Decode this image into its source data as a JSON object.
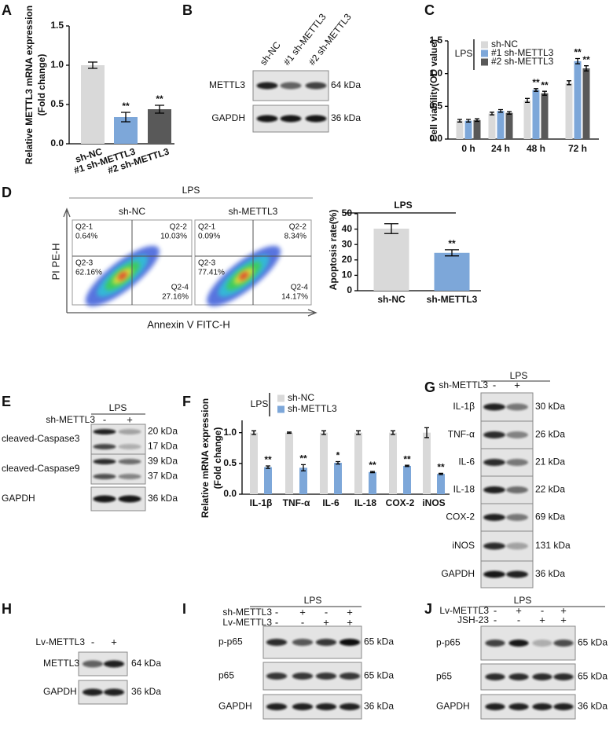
{
  "panel_labels": [
    "A",
    "B",
    "C",
    "D",
    "E",
    "F",
    "G",
    "H",
    "I",
    "J"
  ],
  "chart_data": [
    {
      "type": "bar",
      "y_label": [
        "Relative METTL3 mRNA expression",
        "(Fold change)"
      ],
      "categories": [
        "sh-NC",
        "#1 sh-METTL3",
        "#2 sh-METTL3"
      ],
      "values": [
        1.0,
        0.34,
        0.44
      ],
      "errors": [
        0.04,
        0.06,
        0.05
      ],
      "annotations": [
        null,
        "**",
        "**"
      ],
      "colors": [
        "#d9d9d9",
        "#7da7d9",
        "#595959"
      ],
      "ylim": [
        0,
        1.5
      ],
      "yticks": [
        {
          "value": 0,
          "label": "0.0"
        },
        0.5,
        {
          "value": 1,
          "label": "1.0"
        },
        1.5
      ]
    },
    {
      "type": "bar",
      "y_label": [
        "Cell viability(OD value)"
      ],
      "legend_title": "LPS",
      "categories": [
        "0 h",
        "24 h",
        "48 h",
        "72 h"
      ],
      "series": [
        {
          "name": "sh-NC",
          "color": "#d9d9d9",
          "values": [
            0.28,
            0.39,
            0.59,
            0.86
          ],
          "errors": [
            0.02,
            0.02,
            0.03,
            0.03
          ],
          "annotations": [
            null,
            null,
            null,
            null
          ]
        },
        {
          "name": "#1 sh-METTL3",
          "color": "#7da7d9",
          "values": [
            0.28,
            0.43,
            0.75,
            1.19
          ],
          "errors": [
            0.02,
            0.02,
            0.02,
            0.04
          ],
          "annotations": [
            null,
            null,
            "**",
            "**"
          ]
        },
        {
          "name": "#2 sh-METTL3",
          "color": "#595959",
          "values": [
            0.29,
            0.4,
            0.7,
            1.08
          ],
          "errors": [
            0.02,
            0.02,
            0.03,
            0.04
          ],
          "annotations": [
            null,
            null,
            "**",
            "**"
          ]
        }
      ],
      "ylim": [
        0,
        1.5
      ],
      "yticks": [
        {
          "value": 0,
          "label": "0.0"
        },
        0.5,
        {
          "value": 1,
          "label": "1.0"
        },
        1.5
      ]
    },
    {
      "type": "bar",
      "title": "LPS",
      "y_label": [
        "Apoptosis rate(%)"
      ],
      "categories": [
        "sh-NC",
        "sh-METTL3"
      ],
      "values": [
        40.3,
        24.6
      ],
      "errors": [
        3.2,
        2.0
      ],
      "annotations": [
        null,
        "**"
      ],
      "colors": [
        "#d9d9d9",
        "#7da7d9"
      ],
      "ylim": [
        0,
        50
      ],
      "yticks": [
        0,
        10,
        20,
        30,
        40,
        50
      ]
    },
    {
      "type": "bar",
      "y_label": [
        "Relative mRNA expression",
        "(Fold change)"
      ],
      "legend_title": "LPS",
      "categories": [
        "IL-1β",
        "TNF-α",
        "IL-6",
        "IL-18",
        "COX-2",
        "iNOS"
      ],
      "series": [
        {
          "name": "sh-NC",
          "color": "#d9d9d9",
          "values": [
            1,
            1,
            1,
            1,
            1,
            1
          ],
          "errors": [
            0.03,
            0.01,
            0.03,
            0.03,
            0.03,
            0.08
          ],
          "annotations": [
            null,
            null,
            null,
            null,
            null,
            null
          ]
        },
        {
          "name": "sh-METTL3",
          "color": "#7da7d9",
          "values": [
            0.44,
            0.43,
            0.51,
            0.36,
            0.46,
            0.33
          ],
          "errors": [
            0.02,
            0.05,
            0.02,
            0.01,
            0.01,
            0.01
          ],
          "annotations": [
            "**",
            "**",
            "*",
            "**",
            "**",
            "**"
          ]
        }
      ],
      "ylim": [
        0,
        1.2
      ],
      "yticks": [
        {
          "value": 0,
          "label": "0.0"
        },
        0.5,
        {
          "value": 1,
          "label": "1.0"
        }
      ]
    }
  ],
  "flow": {
    "title": "LPS",
    "x_label": "Annexin V FITC-H",
    "y_label": "PI PE-H",
    "plots": [
      {
        "name": "sh-NC",
        "quadrants": [
          {
            "name": "Q2-1",
            "value": "0.64%"
          },
          {
            "name": "Q2-2",
            "value": "10.03%"
          },
          {
            "name": "Q2-3",
            "value": "62.16%"
          },
          {
            "name": "Q2-4",
            "value": "27.16%"
          }
        ]
      },
      {
        "name": "sh-METTL3",
        "quadrants": [
          {
            "name": "Q2-1",
            "value": "0.09%"
          },
          {
            "name": "Q2-2",
            "value": "8.34%"
          },
          {
            "name": "Q2-3",
            "value": "77.41%"
          },
          {
            "name": "Q2-4",
            "value": "14.17%"
          }
        ]
      }
    ]
  },
  "blots": [
    {
      "lanes": [
        "sh-NC",
        "#1 sh-METTL3",
        "#2 sh-METTL3"
      ],
      "rows": [
        {
          "name": "METTL3",
          "kda": [
            "64 kDa"
          ]
        },
        {
          "name": "GAPDH",
          "kda": [
            "36 kDa"
          ]
        }
      ]
    },
    {
      "header": "LPS",
      "conditions": [
        {
          "name": "sh-METTL3",
          "signs": [
            "-",
            "+"
          ]
        }
      ],
      "rows": [
        {
          "name": "cleaved-Caspase3",
          "kda": [
            "20 kDa",
            "17 kDa"
          ]
        },
        {
          "name": "cleaved-Caspase9",
          "kda": [
            "39 kDa",
            "37 kDa"
          ]
        },
        {
          "name": "GAPDH",
          "kda": [
            "36 kDa"
          ]
        }
      ]
    },
    {
      "header": "LPS",
      "conditions": [
        {
          "name": "sh-METTL3",
          "signs": [
            "-",
            "+"
          ]
        }
      ],
      "rows": [
        {
          "name": "IL-1β",
          "kda": [
            "30 kDa"
          ]
        },
        {
          "name": "TNF-α",
          "kda": [
            "26 kDa"
          ]
        },
        {
          "name": "IL-6",
          "kda": [
            "21 kDa"
          ]
        },
        {
          "name": "IL-18",
          "kda": [
            "22 kDa"
          ]
        },
        {
          "name": "COX-2",
          "kda": [
            "69 kDa"
          ]
        },
        {
          "name": "iNOS",
          "kda": [
            "131 kDa"
          ]
        },
        {
          "name": "GAPDH",
          "kda": [
            "36 kDa"
          ]
        }
      ]
    },
    {
      "conditions": [
        {
          "name": "Lv-METTL3",
          "signs": [
            "-",
            "+"
          ]
        }
      ],
      "rows": [
        {
          "name": "METTL3",
          "kda": [
            "64 kDa"
          ]
        },
        {
          "name": "GAPDH",
          "kda": [
            "36 kDa"
          ]
        }
      ]
    },
    {
      "header": "LPS",
      "conditions": [
        {
          "name": "sh-METTL3",
          "signs": [
            "-",
            "+",
            "-",
            "+"
          ]
        },
        {
          "name": "Lv-METTL3",
          "signs": [
            "-",
            "-",
            "+",
            "+"
          ]
        }
      ],
      "rows": [
        {
          "name": "p-p65",
          "kda": [
            "65 kDa"
          ]
        },
        {
          "name": "p65",
          "kda": [
            "65 kDa"
          ]
        },
        {
          "name": "GAPDH",
          "kda": [
            "36 kDa"
          ]
        }
      ]
    },
    {
      "header": "LPS",
      "conditions": [
        {
          "name": "Lv-METTL3",
          "signs": [
            "-",
            "+",
            "-",
            "+"
          ]
        },
        {
          "name": "JSH-23",
          "signs": [
            "-",
            "-",
            "+",
            "+"
          ]
        }
      ],
      "rows": [
        {
          "name": "p-p65",
          "kda": [
            "65 kDa"
          ]
        },
        {
          "name": "p65",
          "kda": [
            "65 kDa"
          ]
        },
        {
          "name": "GAPDH",
          "kda": [
            "36 kDa"
          ]
        }
      ]
    }
  ]
}
